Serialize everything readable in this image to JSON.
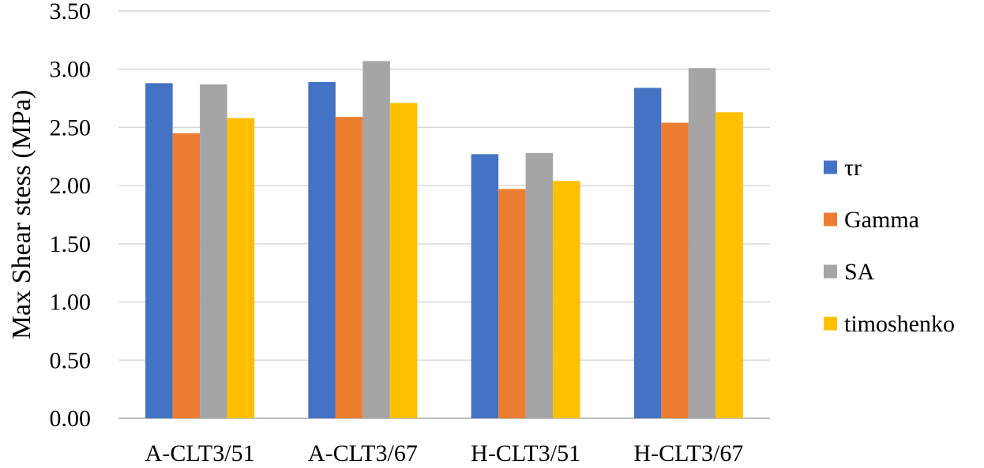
{
  "chart_data": {
    "type": "bar",
    "title": "",
    "xlabel": "",
    "ylabel": "Max Shear stess (MPa)",
    "ylim": [
      0,
      3.5
    ],
    "yticks": [
      0,
      0.5,
      1.0,
      1.5,
      2.0,
      2.5,
      3.0,
      3.5
    ],
    "ytick_labels": [
      "0.00",
      "0.50",
      "1.00",
      "1.50",
      "2.00",
      "2.50",
      "3.00",
      "3.50"
    ],
    "grid": true,
    "legend_position": "right",
    "categories": [
      "A-CLT3/51",
      "A-CLT3/67",
      "H-CLT3/51",
      "H-CLT3/67"
    ],
    "series": [
      {
        "name": "τr",
        "color": "#4472C4",
        "values": [
          2.88,
          2.89,
          2.27,
          2.84
        ]
      },
      {
        "name": "Gamma",
        "color": "#ED7D31",
        "values": [
          2.45,
          2.59,
          1.97,
          2.54
        ]
      },
      {
        "name": "SA",
        "color": "#A5A5A5",
        "values": [
          2.87,
          3.07,
          2.28,
          3.01
        ]
      },
      {
        "name": "timoshenko",
        "color": "#FFC000",
        "values": [
          2.58,
          2.71,
          2.04,
          2.63
        ]
      }
    ]
  }
}
